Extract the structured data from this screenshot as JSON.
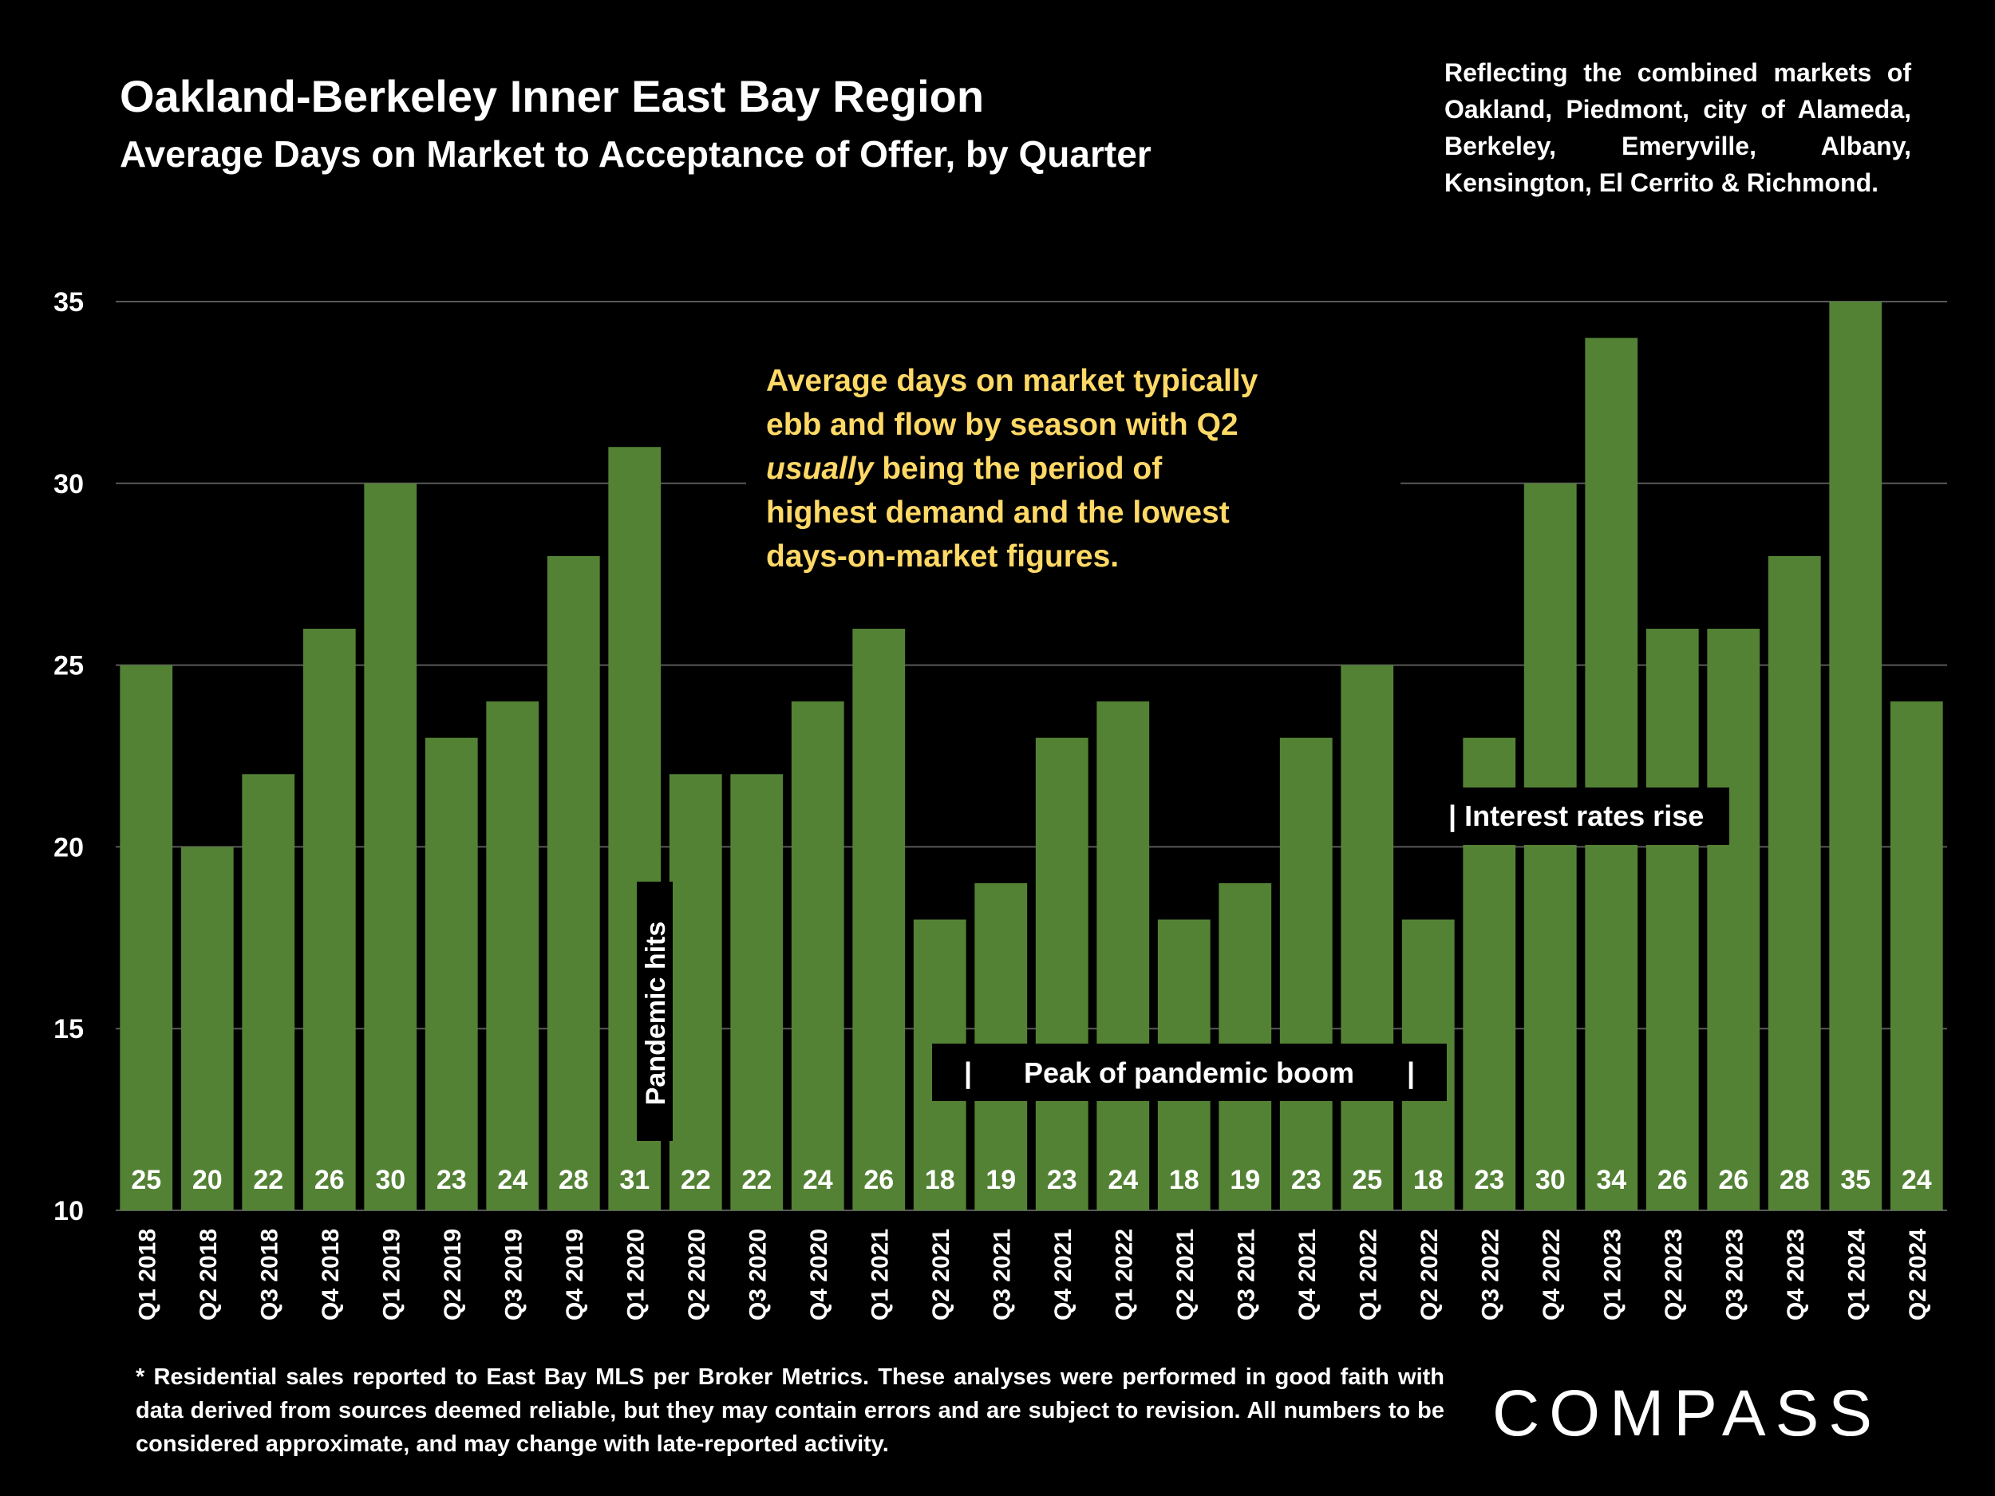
{
  "header": {
    "title": "Oakland-Berkeley Inner East Bay Region",
    "subtitle": "Average Days on Market to Acceptance of Offer, by Quarter",
    "context_note": "Reflecting the combined markets of Oakland, Piedmont, city of Alameda, Berkeley, Emeryville, Albany, Kensington, El Cerrito & Richmond."
  },
  "annotations": {
    "seasonality_parts": [
      "Average days on market typically ebb and flow by season with Q2 ",
      "usually",
      " being the period of highest demand and the lowest days-on-market figures."
    ],
    "pandemic_hits": "Pandemic hits",
    "peak_pandemic_boom": "Peak of pandemic boom",
    "interest_rates_rise": "| Interest rates rise",
    "bracket": "|"
  },
  "footer": {
    "footnote": "* Residential sales reported to East Bay MLS per Broker Metrics. These analyses were performed in good faith with data derived from sources deemed reliable, but they may contain errors and are subject to revision. All numbers to be considered approximate, and may change with late-reported activity.",
    "brand": "COMPASS"
  },
  "colors": {
    "background": "#000000",
    "bar": "#548235",
    "annotation_text": "#ffd966",
    "gridline": "#595959",
    "text": "#ffffff"
  },
  "chart_data": {
    "type": "bar",
    "title": "Average Days on Market to Acceptance of Offer, by Quarter",
    "ylim": [
      10,
      35
    ],
    "yticks": [
      10,
      15,
      20,
      25,
      30,
      35
    ],
    "grid": true,
    "categories": [
      "Q1 2018",
      "Q2 2018",
      "Q3 2018",
      "Q4 2018",
      "Q1 2019",
      "Q2 2019",
      "Q3 2019",
      "Q4 2019",
      "Q1 2020",
      "Q2 2020",
      "Q3 2020",
      "Q4 2020",
      "Q1 2021",
      "Q2 2021",
      "Q3 2021",
      "Q4 2021",
      "Q1 2022",
      "Q2 2021",
      "Q3 2021",
      "Q4 2021",
      "Q1 2022",
      "Q2 2022",
      "Q3 2022",
      "Q4 2022",
      "Q1 2023",
      "Q2 2023",
      "Q3 2023",
      "Q4 2023",
      "Q1 2024",
      "Q2 2024"
    ],
    "values": [
      25,
      20,
      22,
      26,
      30,
      23,
      24,
      28,
      31,
      22,
      22,
      24,
      26,
      18,
      19,
      23,
      24,
      18,
      19,
      23,
      25,
      18,
      23,
      30,
      34,
      26,
      26,
      28,
      35,
      24
    ]
  }
}
